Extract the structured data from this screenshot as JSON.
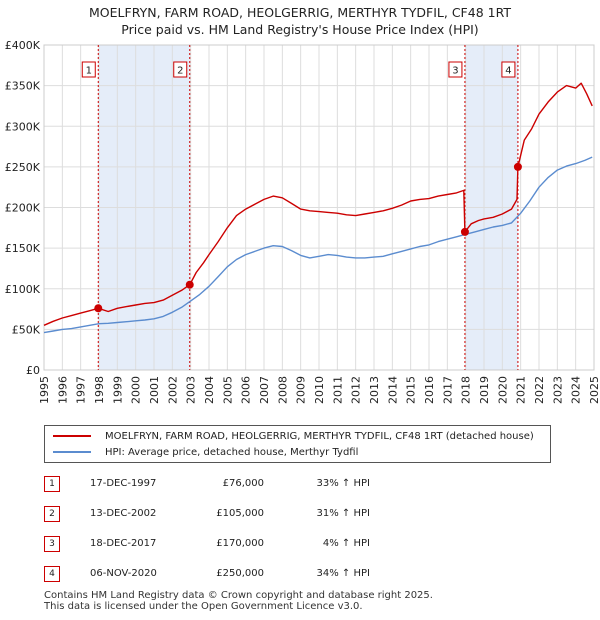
{
  "title_line1": "MOELFRYN, FARM ROAD, HEOLGERRIG, MERTHYR TYDFIL, CF48 1RT",
  "title_line2": "Price paid vs. HM Land Registry's House Price Index (HPI)",
  "chart_data": {
    "type": "line",
    "xlim": [
      1995,
      2025
    ],
    "ylim": [
      0,
      400000
    ],
    "x_ticks": [
      "1995",
      "1996",
      "1997",
      "1998",
      "1999",
      "2000",
      "2001",
      "2002",
      "2003",
      "2004",
      "2005",
      "2006",
      "2007",
      "2008",
      "2009",
      "2010",
      "2011",
      "2012",
      "2013",
      "2014",
      "2015",
      "2016",
      "2017",
      "2018",
      "2019",
      "2020",
      "2021",
      "2022",
      "2023",
      "2024",
      "2025"
    ],
    "y_ticks": [
      {
        "value": 0,
        "label": "£0"
      },
      {
        "value": 50000,
        "label": "£50K"
      },
      {
        "value": 100000,
        "label": "£100K"
      },
      {
        "value": 150000,
        "label": "£150K"
      },
      {
        "value": 200000,
        "label": "£200K"
      },
      {
        "value": 250000,
        "label": "£250K"
      },
      {
        "value": 300000,
        "label": "£300K"
      },
      {
        "value": 350000,
        "label": "£350K"
      },
      {
        "value": 400000,
        "label": "£400K"
      }
    ],
    "shaded_periods": [
      [
        1997.96,
        2002.95
      ],
      [
        2017.96,
        2020.85
      ]
    ],
    "series": [
      {
        "name": "MOELFRYN, FARM ROAD, HEOLGERRIG, MERTHYR TYDFIL, CF48 1RT (detached house)",
        "color": "#cc0000",
        "x": [
          1995.0,
          1995.5,
          1996.0,
          1996.5,
          1997.0,
          1997.5,
          1997.96,
          1998.5,
          1999.0,
          1999.5,
          2000.0,
          2000.5,
          2001.0,
          2001.5,
          2002.0,
          2002.5,
          2002.95,
          2003.3,
          2003.7,
          2004.0,
          2004.5,
          2005.0,
          2005.5,
          2006.0,
          2006.5,
          2007.0,
          2007.5,
          2008.0,
          2008.5,
          2009.0,
          2009.5,
          2010.0,
          2010.5,
          2011.0,
          2011.5,
          2012.0,
          2012.5,
          2013.0,
          2013.5,
          2014.0,
          2014.5,
          2015.0,
          2015.5,
          2016.0,
          2016.5,
          2017.0,
          2017.5,
          2017.9,
          2017.96,
          2018.3,
          2018.7,
          2019.0,
          2019.5,
          2020.0,
          2020.5,
          2020.8,
          2020.85,
          2021.2,
          2021.6,
          2022.0,
          2022.5,
          2023.0,
          2023.5,
          2024.0,
          2024.3,
          2024.6,
          2024.9
        ],
        "y": [
          55000,
          60000,
          64000,
          67000,
          70000,
          73000,
          76000,
          72000,
          76000,
          78000,
          80000,
          82000,
          83000,
          86000,
          92000,
          98000,
          105000,
          120000,
          132000,
          142000,
          158000,
          175000,
          190000,
          198000,
          204000,
          210000,
          214000,
          212000,
          205000,
          198000,
          196000,
          195000,
          194000,
          193000,
          191000,
          190000,
          192000,
          194000,
          196000,
          199000,
          203000,
          208000,
          210000,
          211000,
          214000,
          216000,
          218000,
          221000,
          170000,
          180000,
          184000,
          186000,
          188000,
          192000,
          198000,
          210000,
          250000,
          283000,
          297000,
          315000,
          330000,
          342000,
          350000,
          347000,
          353000,
          340000,
          325000
        ]
      },
      {
        "name": "HPI: Average price, detached house, Merthyr Tydfil",
        "color": "#5b8ccf",
        "x": [
          1995.0,
          1995.5,
          1996.0,
          1996.5,
          1997.0,
          1997.5,
          1998.0,
          1998.5,
          1999.0,
          1999.5,
          2000.0,
          2000.5,
          2001.0,
          2001.5,
          2002.0,
          2002.5,
          2003.0,
          2003.5,
          2004.0,
          2004.5,
          2005.0,
          2005.5,
          2006.0,
          2006.5,
          2007.0,
          2007.5,
          2008.0,
          2008.5,
          2009.0,
          2009.5,
          2010.0,
          2010.5,
          2011.0,
          2011.5,
          2012.0,
          2012.5,
          2013.0,
          2013.5,
          2014.0,
          2014.5,
          2015.0,
          2015.5,
          2016.0,
          2016.5,
          2017.0,
          2017.5,
          2018.0,
          2018.5,
          2019.0,
          2019.5,
          2020.0,
          2020.5,
          2021.0,
          2021.5,
          2022.0,
          2022.5,
          2023.0,
          2023.5,
          2024.0,
          2024.5,
          2024.9
        ],
        "y": [
          46000,
          48000,
          50000,
          51000,
          53000,
          55000,
          57000,
          57500,
          58500,
          59500,
          60500,
          61500,
          63000,
          66000,
          71000,
          77000,
          85000,
          93000,
          103000,
          115000,
          127000,
          136000,
          142000,
          146000,
          150000,
          153000,
          152000,
          147000,
          141000,
          138000,
          140000,
          142000,
          141000,
          139000,
          138000,
          138000,
          139000,
          140000,
          143000,
          146000,
          149000,
          152000,
          154000,
          158000,
          161000,
          164000,
          167000,
          170000,
          173000,
          176000,
          178000,
          181000,
          193000,
          208000,
          225000,
          237000,
          246000,
          251000,
          254000,
          258000,
          262000
        ]
      }
    ],
    "sales": [
      {
        "label": "1",
        "x": 1997.96,
        "y": 76000
      },
      {
        "label": "2",
        "x": 2002.95,
        "y": 105000
      },
      {
        "label": "3",
        "x": 2017.96,
        "y": 170000
      },
      {
        "label": "4",
        "x": 2020.85,
        "y": 250000
      }
    ]
  },
  "legend": {
    "series_1": "MOELFRYN, FARM ROAD, HEOLGERRIG, MERTHYR TYDFIL, CF48 1RT (detached house)",
    "series_2": "HPI: Average price, detached house, Merthyr Tydfil",
    "color_1": "#cc0000",
    "color_2": "#5b8ccf"
  },
  "sales_table": [
    {
      "num": "1",
      "date": "17-DEC-1997",
      "price": "£76,000",
      "hpi": "33% ↑ HPI"
    },
    {
      "num": "2",
      "date": "13-DEC-2002",
      "price": "£105,000",
      "hpi": "31% ↑ HPI"
    },
    {
      "num": "3",
      "date": "18-DEC-2017",
      "price": "£170,000",
      "hpi": "4% ↑ HPI"
    },
    {
      "num": "4",
      "date": "06-NOV-2020",
      "price": "£250,000",
      "hpi": "34% ↑ HPI"
    }
  ],
  "footer_line1": "Contains HM Land Registry data © Crown copyright and database right 2025.",
  "footer_line2": "This data is licensed under the Open Government Licence v3.0."
}
